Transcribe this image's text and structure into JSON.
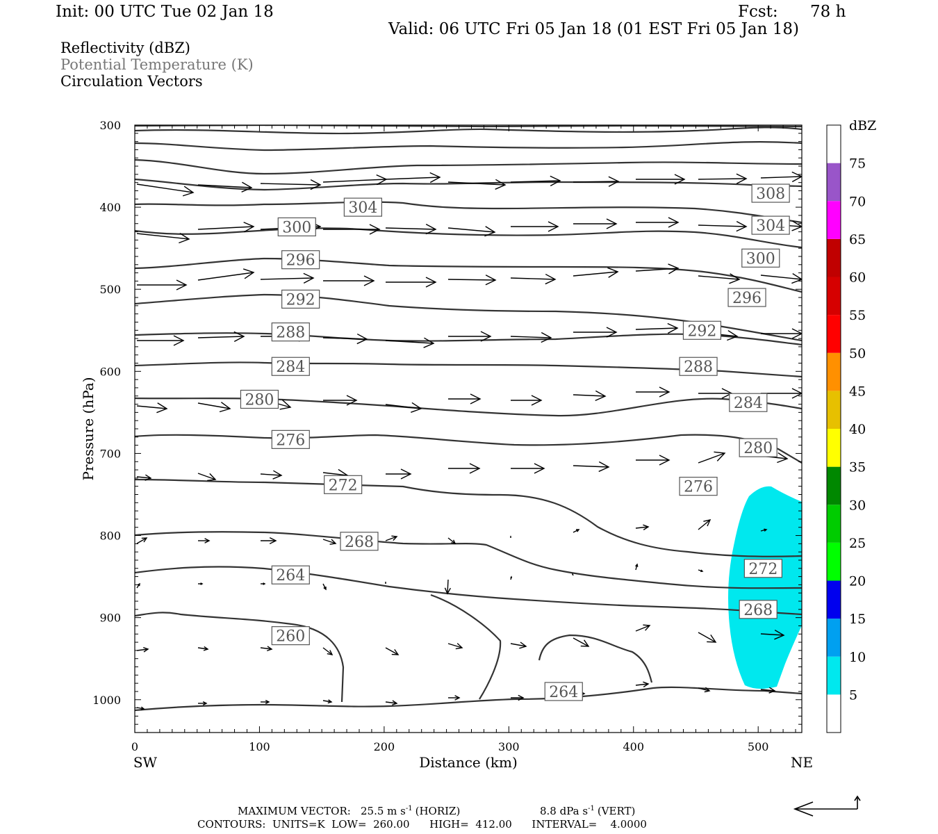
{
  "header": {
    "init": "Init: 00 UTC Tue 02 Jan 18",
    "fcst_label": "Fcst:",
    "fcst_value": "78 h",
    "valid": "Valid: 06 UTC Fri 05 Jan 18 (01 EST Fri 05 Jan 18)"
  },
  "fields": {
    "reflectivity": "Reflectivity (dBZ)",
    "theta": "Potential Temperature (K)",
    "vectors": "Circulation Vectors"
  },
  "colors": {
    "theta_label": "#777777",
    "contour": "#333333",
    "reflectivity_5": "#00e8ee"
  },
  "chart_data": {
    "type": "cross-section",
    "x_axis": {
      "label": "Distance (km)",
      "range": [
        0,
        535
      ],
      "ticks": [
        "0",
        "100",
        "200",
        "300",
        "400",
        "500"
      ],
      "left_end": "SW",
      "right_end": "NE"
    },
    "y_axis": {
      "label": "Pressure (hPa)",
      "range": [
        300,
        1040
      ],
      "ticks": [
        "300",
        "400",
        "500",
        "600",
        "700",
        "800",
        "900",
        "1000"
      ]
    },
    "contours": {
      "units": "K",
      "low": 260,
      "high": 412,
      "interval": 4,
      "labels": [
        {
          "text": "308",
          "x": 510,
          "p": 383
        },
        {
          "text": "304",
          "x": 183,
          "p": 400
        },
        {
          "text": "304",
          "x": 510,
          "p": 422
        },
        {
          "text": "300",
          "x": 130,
          "p": 424
        },
        {
          "text": "300",
          "x": 502,
          "p": 462
        },
        {
          "text": "296",
          "x": 133,
          "p": 464
        },
        {
          "text": "296",
          "x": 491,
          "p": 510
        },
        {
          "text": "292",
          "x": 133,
          "p": 512
        },
        {
          "text": "292",
          "x": 455,
          "p": 550
        },
        {
          "text": "288",
          "x": 125,
          "p": 552
        },
        {
          "text": "288",
          "x": 452,
          "p": 594
        },
        {
          "text": "284",
          "x": 125,
          "p": 594
        },
        {
          "text": "284",
          "x": 492,
          "p": 638
        },
        {
          "text": "280",
          "x": 100,
          "p": 634
        },
        {
          "text": "280",
          "x": 500,
          "p": 693
        },
        {
          "text": "276",
          "x": 125,
          "p": 683
        },
        {
          "text": "276",
          "x": 452,
          "p": 740
        },
        {
          "text": "272",
          "x": 167,
          "p": 738
        },
        {
          "text": "272",
          "x": 504,
          "p": 840
        },
        {
          "text": "268",
          "x": 180,
          "p": 807
        },
        {
          "text": "268",
          "x": 500,
          "p": 890
        },
        {
          "text": "264",
          "x": 125,
          "p": 848
        },
        {
          "text": "264",
          "x": 344,
          "p": 990
        },
        {
          "text": "260",
          "x": 125,
          "p": 922
        }
      ]
    },
    "reflectivity_region": {
      "min_dbz": 5,
      "x_range_km": [
        475,
        535
      ],
      "p_range_hpa": [
        750,
        990
      ]
    },
    "colorbar": {
      "title": "dBZ",
      "levels": [
        {
          "label": "",
          "color": "#ffffff"
        },
        {
          "label": "5",
          "color": "#00e8ee"
        },
        {
          "label": "10",
          "color": "#00a0f0"
        },
        {
          "label": "15",
          "color": "#0000ee"
        },
        {
          "label": "20",
          "color": "#00ff00"
        },
        {
          "label": "25",
          "color": "#00cc00"
        },
        {
          "label": "30",
          "color": "#008800"
        },
        {
          "label": "35",
          "color": "#ffff00"
        },
        {
          "label": "40",
          "color": "#e7c000"
        },
        {
          "label": "45",
          "color": "#ff9000"
        },
        {
          "label": "50",
          "color": "#ff0000"
        },
        {
          "label": "55",
          "color": "#d60000"
        },
        {
          "label": "60",
          "color": "#c00000"
        },
        {
          "label": "65",
          "color": "#ff00ff"
        },
        {
          "label": "70",
          "color": "#9955c9"
        },
        {
          "label": "75",
          "color": "#ffffff"
        }
      ]
    }
  },
  "footer": {
    "max_vector_label": "MAXIMUM VECTOR:",
    "max_horiz": "25.5 m s",
    "horiz_unit": "(HORIZ)",
    "max_vert": "8.8 dPa s",
    "vert_unit": "(VERT)",
    "exponent": "-1",
    "contours_line": "CONTOURS:  UNITS=K  LOW=  260.00      HIGH=  412.00      INTERVAL=    4.0000"
  }
}
